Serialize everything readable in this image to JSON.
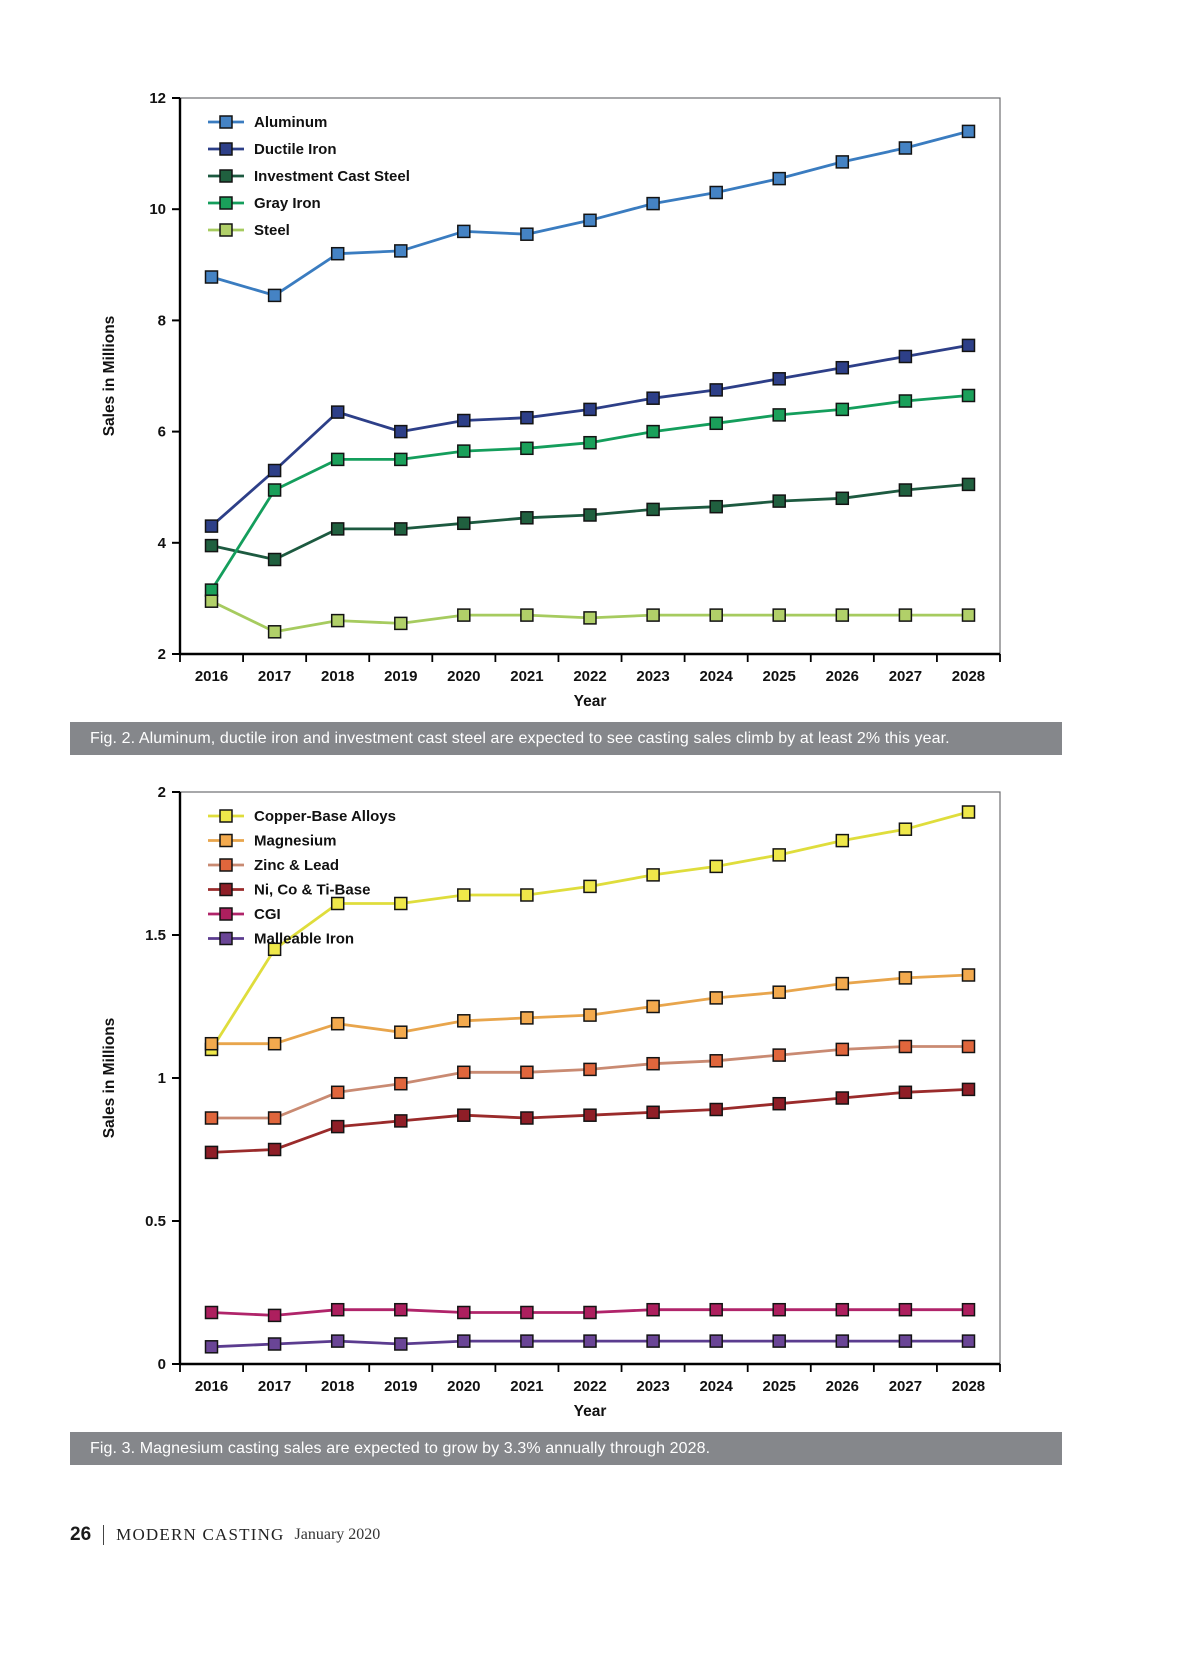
{
  "fig2": {
    "caption": "Fig. 2. Aluminum, ductile iron and investment cast steel are expected to see casting sales climb by at least 2% this year."
  },
  "fig3": {
    "caption": "Fig. 3. Magnesium casting sales are expected to grow by 3.3% annually through 2028."
  },
  "footer": {
    "page_number": "26",
    "magazine": "MODERN CASTING",
    "issue": "January 2020"
  },
  "chart_data": [
    {
      "type": "line",
      "title": "",
      "xlabel": "Year",
      "ylabel": "Sales in Millions",
      "categories": [
        "2016",
        "2017",
        "2018",
        "2019",
        "2020",
        "2021",
        "2022",
        "2023",
        "2024",
        "2025",
        "2026",
        "2027",
        "2028"
      ],
      "ylim": [
        2,
        12
      ],
      "yticks": [
        2,
        4,
        6,
        8,
        10,
        12
      ],
      "grid": false,
      "legend_position": "top-left-inside",
      "series": [
        {
          "name": "Aluminum",
          "color": "#4583c4",
          "line_color": "#3a7cc0",
          "values": [
            8.78,
            8.45,
            9.2,
            9.25,
            9.6,
            9.55,
            9.8,
            10.1,
            10.3,
            10.55,
            10.85,
            11.1,
            11.4
          ]
        },
        {
          "name": "Ductile Iron",
          "color": "#2d3f88",
          "line_color": "#2d3f88",
          "values": [
            4.3,
            5.3,
            6.35,
            6.0,
            6.2,
            6.25,
            6.4,
            6.6,
            6.75,
            6.95,
            7.15,
            7.35,
            7.55
          ]
        },
        {
          "name": "Investment Cast Steel",
          "color": "#20603f",
          "line_color": "#1d5a40",
          "values": [
            3.95,
            3.7,
            4.25,
            4.25,
            4.35,
            4.45,
            4.5,
            4.6,
            4.65,
            4.75,
            4.8,
            4.95,
            5.05
          ]
        },
        {
          "name": "Gray Iron",
          "color": "#1aa05a",
          "line_color": "#149e5c",
          "values": [
            3.15,
            4.95,
            5.5,
            5.5,
            5.65,
            5.7,
            5.8,
            6.0,
            6.15,
            6.3,
            6.4,
            6.55,
            6.65
          ]
        },
        {
          "name": "Steel",
          "color": "#b1d069",
          "line_color": "#a6cb5f",
          "values": [
            2.95,
            2.4,
            2.6,
            2.55,
            2.7,
            2.7,
            2.65,
            2.7,
            2.7,
            2.7,
            2.7,
            2.7,
            2.7
          ]
        }
      ]
    },
    {
      "type": "line",
      "title": "",
      "xlabel": "Year",
      "ylabel": "Sales in Millions",
      "categories": [
        "2016",
        "2017",
        "2018",
        "2019",
        "2020",
        "2021",
        "2022",
        "2023",
        "2024",
        "2025",
        "2026",
        "2027",
        "2028"
      ],
      "ylim": [
        0,
        2
      ],
      "yticks": [
        0,
        0.5,
        1,
        1.5,
        2
      ],
      "grid": false,
      "legend_position": "top-left-inside",
      "series": [
        {
          "name": "Copper-Base Alloys",
          "color": "#efe84a",
          "line_color": "#dfdd3c",
          "values": [
            1.1,
            1.45,
            1.61,
            1.61,
            1.64,
            1.64,
            1.67,
            1.71,
            1.74,
            1.78,
            1.83,
            1.87,
            1.93
          ]
        },
        {
          "name": "Magnesium",
          "color": "#f3aa4e",
          "line_color": "#e8a54c",
          "values": [
            1.12,
            1.12,
            1.19,
            1.16,
            1.2,
            1.21,
            1.22,
            1.25,
            1.28,
            1.3,
            1.33,
            1.35,
            1.36
          ]
        },
        {
          "name": "Zinc & Lead",
          "color": "#e0663c",
          "line_color": "#c98a72",
          "values": [
            0.86,
            0.86,
            0.95,
            0.98,
            1.02,
            1.02,
            1.03,
            1.05,
            1.06,
            1.08,
            1.1,
            1.11,
            1.11
          ]
        },
        {
          "name": "Ni, Co & Ti-Base",
          "color": "#8f1e27",
          "line_color": "#9a2b2b",
          "values": [
            0.74,
            0.75,
            0.83,
            0.85,
            0.87,
            0.86,
            0.87,
            0.88,
            0.89,
            0.91,
            0.93,
            0.95,
            0.96
          ]
        },
        {
          "name": "CGI",
          "color": "#ad1f5e",
          "line_color": "#b0246a",
          "values": [
            0.18,
            0.17,
            0.19,
            0.19,
            0.18,
            0.18,
            0.18,
            0.19,
            0.19,
            0.19,
            0.19,
            0.19,
            0.19
          ]
        },
        {
          "name": "Malleable Iron",
          "color": "#6a4596",
          "line_color": "#5b3c8f",
          "values": [
            0.06,
            0.07,
            0.08,
            0.07,
            0.08,
            0.08,
            0.08,
            0.08,
            0.08,
            0.08,
            0.08,
            0.08,
            0.08
          ]
        }
      ]
    }
  ]
}
